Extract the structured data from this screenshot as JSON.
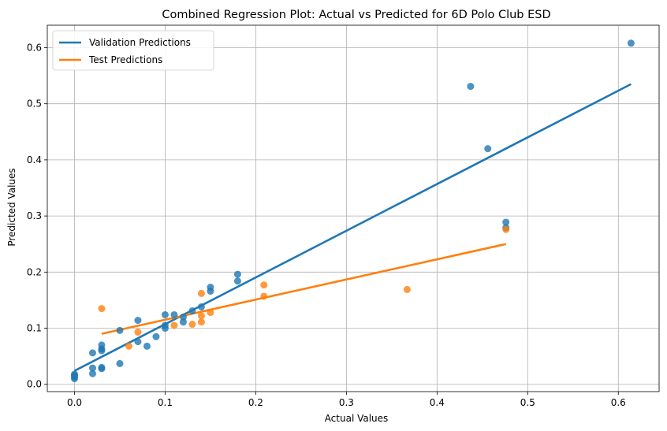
{
  "chart_data": {
    "type": "scatter",
    "title": "Combined Regression Plot: Actual vs Predicted for 6D Polo Club ESD",
    "xlabel": "Actual Values",
    "ylabel": "Predicted Values",
    "xlim": [
      -0.03,
      0.645
    ],
    "ylim": [
      -0.013,
      0.64
    ],
    "xticks": [
      0.0,
      0.1,
      0.2,
      0.3,
      0.4,
      0.5,
      0.6
    ],
    "xtick_labels": [
      "0.0",
      "0.1",
      "0.2",
      "0.3",
      "0.4",
      "0.5",
      "0.6"
    ],
    "yticks": [
      0.0,
      0.1,
      0.2,
      0.3,
      0.4,
      0.5,
      0.6
    ],
    "ytick_labels": [
      "0.0",
      "0.1",
      "0.2",
      "0.3",
      "0.4",
      "0.5",
      "0.6"
    ],
    "grid": true,
    "legend_position": "top-left",
    "series": [
      {
        "name": "Validation Predictions",
        "color": "#1f77b4",
        "points": [
          [
            0.0,
            0.01
          ],
          [
            0.0,
            0.013
          ],
          [
            0.0,
            0.016
          ],
          [
            0.0,
            0.018
          ],
          [
            0.02,
            0.019
          ],
          [
            0.02,
            0.029
          ],
          [
            0.02,
            0.056
          ],
          [
            0.03,
            0.028
          ],
          [
            0.03,
            0.03
          ],
          [
            0.03,
            0.06
          ],
          [
            0.03,
            0.063
          ],
          [
            0.03,
            0.07
          ],
          [
            0.05,
            0.037
          ],
          [
            0.05,
            0.096
          ],
          [
            0.07,
            0.076
          ],
          [
            0.07,
            0.114
          ],
          [
            0.08,
            0.068
          ],
          [
            0.09,
            0.085
          ],
          [
            0.1,
            0.1
          ],
          [
            0.1,
            0.105
          ],
          [
            0.1,
            0.124
          ],
          [
            0.11,
            0.124
          ],
          [
            0.12,
            0.111
          ],
          [
            0.12,
            0.12
          ],
          [
            0.13,
            0.131
          ],
          [
            0.14,
            0.138
          ],
          [
            0.15,
            0.166
          ],
          [
            0.15,
            0.173
          ],
          [
            0.18,
            0.184
          ],
          [
            0.18,
            0.196
          ],
          [
            0.437,
            0.531
          ],
          [
            0.456,
            0.42
          ],
          [
            0.476,
            0.289
          ],
          [
            0.476,
            0.279
          ],
          [
            0.614,
            0.608
          ]
        ],
        "fit": [
          [
            0.0,
            0.024
          ],
          [
            0.614,
            0.535
          ]
        ]
      },
      {
        "name": "Test Predictions",
        "color": "#ff7f0e",
        "points": [
          [
            0.03,
            0.135
          ],
          [
            0.06,
            0.068
          ],
          [
            0.07,
            0.093
          ],
          [
            0.11,
            0.105
          ],
          [
            0.13,
            0.107
          ],
          [
            0.14,
            0.111
          ],
          [
            0.14,
            0.122
          ],
          [
            0.14,
            0.162
          ],
          [
            0.15,
            0.128
          ],
          [
            0.209,
            0.157
          ],
          [
            0.209,
            0.177
          ],
          [
            0.367,
            0.169
          ],
          [
            0.476,
            0.276
          ]
        ],
        "fit": [
          [
            0.03,
            0.09
          ],
          [
            0.476,
            0.25
          ]
        ]
      }
    ]
  }
}
